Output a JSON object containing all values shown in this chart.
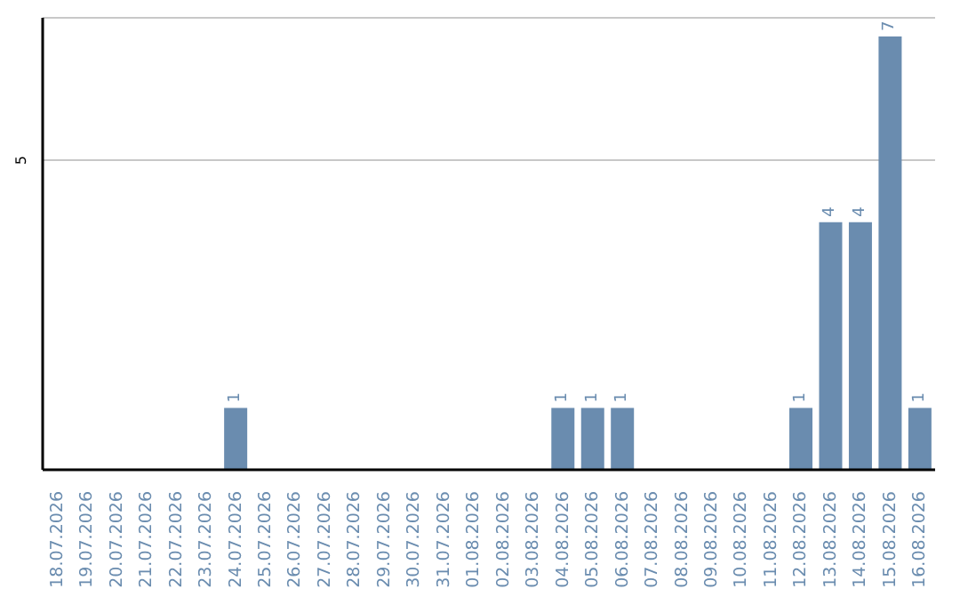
{
  "chart_data": {
    "type": "bar",
    "categories": [
      "18.07.2026",
      "19.07.2026",
      "20.07.2026",
      "21.07.2026",
      "22.07.2026",
      "23.07.2026",
      "24.07.2026",
      "25.07.2026",
      "26.07.2026",
      "27.07.2026",
      "28.07.2026",
      "29.07.2026",
      "30.07.2026",
      "31.07.2026",
      "01.08.2026",
      "02.08.2026",
      "03.08.2026",
      "04.08.2026",
      "05.08.2026",
      "06.08.2026",
      "07.08.2026",
      "08.08.2026",
      "09.08.2026",
      "10.08.2026",
      "11.08.2026",
      "12.08.2026",
      "13.08.2026",
      "14.08.2026",
      "15.08.2026",
      "16.08.2026"
    ],
    "values": [
      0,
      0,
      0,
      0,
      0,
      0,
      1,
      0,
      0,
      0,
      0,
      0,
      0,
      0,
      0,
      0,
      0,
      1,
      1,
      1,
      0,
      0,
      0,
      0,
      0,
      1,
      4,
      4,
      7,
      1
    ],
    "value_labels": [
      null,
      null,
      null,
      null,
      null,
      null,
      "1",
      null,
      null,
      null,
      null,
      null,
      null,
      null,
      null,
      null,
      null,
      "1",
      "1",
      "1",
      null,
      null,
      null,
      null,
      null,
      "1",
      "4",
      "4",
      "7",
      "1"
    ],
    "color": "#6a8caf",
    "ylim": [
      0,
      7.3
    ],
    "yticks": [
      5
    ],
    "grid": "y"
  }
}
